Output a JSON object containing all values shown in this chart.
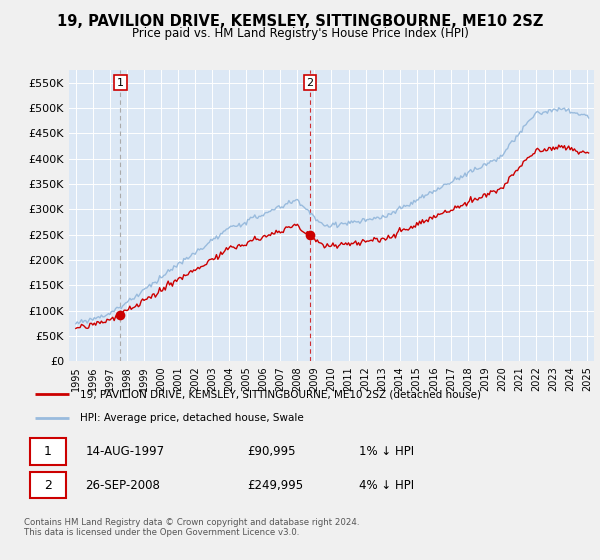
{
  "title": "19, PAVILION DRIVE, KEMSLEY, SITTINGBOURNE, ME10 2SZ",
  "subtitle": "Price paid vs. HM Land Registry's House Price Index (HPI)",
  "ylim": [
    0,
    575000
  ],
  "yticks": [
    0,
    50000,
    100000,
    150000,
    200000,
    250000,
    300000,
    350000,
    400000,
    450000,
    500000,
    550000
  ],
  "ytick_labels": [
    "£0",
    "£50K",
    "£100K",
    "£150K",
    "£200K",
    "£250K",
    "£300K",
    "£350K",
    "£400K",
    "£450K",
    "£500K",
    "£550K"
  ],
  "sale1_date": 1997.62,
  "sale1_price": 90995,
  "sale2_date": 2008.74,
  "sale2_price": 249995,
  "legend_line1": "19, PAVILION DRIVE, KEMSLEY, SITTINGBOURNE, ME10 2SZ (detached house)",
  "legend_line2": "HPI: Average price, detached house, Swale",
  "footer": "Contains HM Land Registry data © Crown copyright and database right 2024.\nThis data is licensed under the Open Government Licence v3.0.",
  "sale_color": "#cc0000",
  "hpi_color": "#99bbdd",
  "vline1_color": "#aaaaaa",
  "vline2_color": "#cc0000",
  "bg_color": "#dce8f5",
  "fig_bg": "#f5f5f5"
}
